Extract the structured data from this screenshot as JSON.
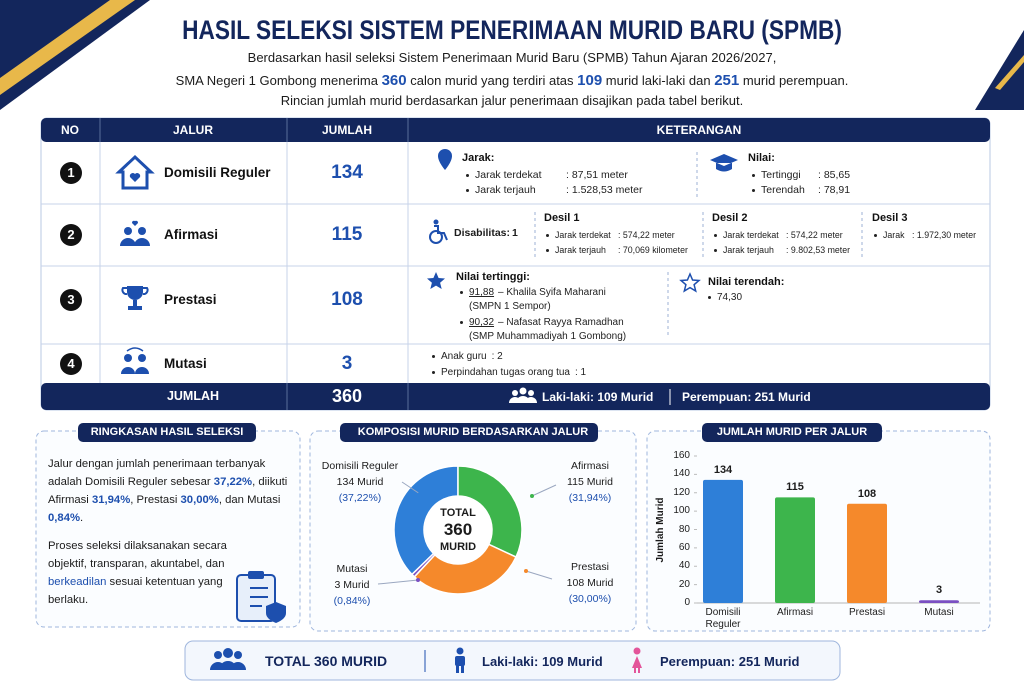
{
  "header": {
    "title": "HASIL SELEKSI SISTEM PENERIMAAN MURID BARU (SPMB)",
    "intro": [
      [
        "Berdasarkan hasil seleksi Sistem Penerimaan Murid Baru (SPMB) Tahun Ajaran 2026/2027,"
      ],
      [
        "SMA Negeri 1 Gombong menerima ",
        "360",
        " calon murid yang terdiri atas ",
        "109",
        " murid laki-laki dan ",
        "251",
        " murid perempuan."
      ],
      [
        "Rincian jumlah murid berdasarkan jalur penerimaan disajikan pada tabel berikut."
      ]
    ]
  },
  "table": {
    "headers": [
      "NO",
      "JALUR",
      "JUMLAH",
      "KETERANGAN"
    ],
    "rows": [
      {
        "no": "1",
        "jalur": "Domisili Reguler",
        "jumlah": "134",
        "keterangan": {
          "groups": [
            {
              "title": "Jarak:",
              "items": [
                {
                  "label": "Jarak terdekat",
                  "value": ": 87,51 meter"
                },
                {
                  "label": "Jarak terjauh",
                  "value": ": 1.528,53 meter"
                }
              ]
            },
            {
              "title": "Nilai:",
              "items": [
                {
                  "label": "Tertinggi",
                  "value": ": 85,65"
                },
                {
                  "label": "Terendah",
                  "value": ": 78,91"
                }
              ]
            }
          ]
        }
      },
      {
        "no": "2",
        "jalur": "Afirmasi",
        "jumlah": "115",
        "keterangan": {
          "disabilitas_label": "Disabilitas:",
          "disabilitas_value": "1",
          "groups": [
            {
              "title": "Desil 1",
              "items": [
                {
                  "label": "Jarak terdekat",
                  "value": ": 574,22 meter"
                },
                {
                  "label": "Jarak terjauh",
                  "value": ": 70,069 kilometer"
                }
              ]
            },
            {
              "title": "Desil 2",
              "items": [
                {
                  "label": "Jarak terdekat",
                  "value": ": 574,22 meter"
                },
                {
                  "label": "Jarak terjauh",
                  "value": ": 9.802,53 meter"
                }
              ]
            },
            {
              "title": "Desil 3",
              "items": [
                {
                  "label": "Jarak",
                  "value": ": 1.972,30 meter"
                }
              ]
            }
          ]
        }
      },
      {
        "no": "3",
        "jalur": "Prestasi",
        "jumlah": "108",
        "keterangan": {
          "groups": [
            {
              "title": "Nilai tertinggi:",
              "items": [
                {
                  "label": "91,88",
                  "text": "– Khalila Syifa Maharani",
                  "note": "(SMPN 1 Sempor)"
                },
                {
                  "label": "90,32",
                  "text": "– Nafasat Rayya Ramadhan",
                  "note": "(SMP Muhammadiyah 1 Gombong)"
                }
              ]
            },
            {
              "title": "Nilai terendah:",
              "items": [
                {
                  "text": "74,30"
                }
              ]
            }
          ]
        }
      },
      {
        "no": "4",
        "jalur": "Mutasi",
        "jumlah": "3",
        "keterangan": {
          "items": [
            {
              "label": "Anak guru",
              "value": ": 2"
            },
            {
              "label": "Perpindahan tugas orang tua",
              "value": ": 1"
            }
          ]
        }
      }
    ],
    "total": {
      "label": "JUMLAH",
      "value": "360",
      "male": "Laki-laki: 109 Murid",
      "female": "Perempuan: 251 Murid"
    }
  },
  "summary": {
    "title": "RINGKASAN HASIL SELEKSI",
    "paragraphs": [
      [
        "Jalur dengan jumlah penerimaan terbanyak adalah Domisili Reguler sebesar ",
        "37,22%",
        ", diikuti Afirmasi ",
        "31,94%",
        ", Prestasi ",
        "30,00%",
        ", dan Mutasi ",
        "0,84%",
        "."
      ],
      [
        "Proses seleksi dilaksanakan secara objektif, transparan, akuntabel, dan ",
        "berkeadilan",
        " sesuai ketentuan yang berlaku."
      ]
    ]
  },
  "chart_data": [
    {
      "type": "pie",
      "title": "KOMPOSISI MURID BERDASARKAN JALUR",
      "categories": [
        "Domisili Reguler",
        "Afirmasi",
        "Prestasi",
        "Mutasi"
      ],
      "values": [
        134,
        115,
        108,
        3
      ],
      "value_labels": [
        "134 Murid",
        "115 Murid",
        "108 Murid",
        "3 Murid"
      ],
      "percent_labels": [
        "(37,22%)",
        "(31,94%)",
        "(30,00%)",
        "(0,84%)"
      ],
      "colors": [
        "#2e7fd8",
        "#3db54c",
        "#f5892b",
        "#7b50c2"
      ],
      "center_label": [
        "TOTAL",
        "360",
        "MURID"
      ]
    },
    {
      "type": "bar",
      "title": "JUMLAH MURID PER JALUR",
      "categories": [
        "Domisili Reguler",
        "Afirmasi",
        "Prestasi",
        "Mutasi"
      ],
      "values": [
        134,
        115,
        108,
        3
      ],
      "colors": [
        "#2e7fd8",
        "#3db54c",
        "#f5892b",
        "#7b50c2"
      ],
      "ylabel": "Jumlah Murid",
      "ylim": [
        0,
        160
      ],
      "yticks": [
        0,
        20,
        40,
        60,
        80,
        100,
        120,
        140,
        160
      ],
      "grid": false
    }
  ],
  "footer": {
    "total": "TOTAL 360 MURID",
    "male": "Laki-laki: 109 Murid",
    "female": "Perempuan: 251 Murid"
  }
}
